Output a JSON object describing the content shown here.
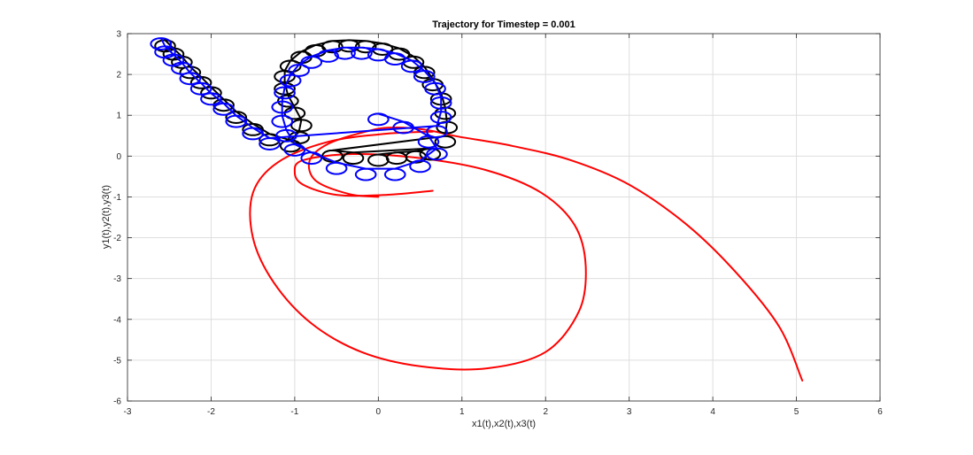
{
  "chart_data": {
    "type": "line",
    "title": "Trajectory for Timestep = 0.001",
    "xlabel": "x1(t),x2(t),x3(t)",
    "ylabel": "y1(t),y2(t),y3(t)",
    "xlim": [
      -3,
      6
    ],
    "ylim": [
      -6,
      3
    ],
    "xticks": [
      -3,
      -2,
      -1,
      0,
      1,
      2,
      3,
      4,
      5,
      6
    ],
    "yticks": [
      -6,
      -5,
      -4,
      -3,
      -2,
      -1,
      0,
      1,
      2,
      3
    ],
    "grid": true,
    "legend": "none",
    "series": [
      {
        "color": "#ff0000",
        "x": [
          0,
          -0.35,
          -0.75,
          -0.82,
          -0.6,
          -0.15,
          0.15,
          0.55,
          0.95,
          1.6,
          2.3,
          3.0,
          3.7,
          4.3,
          4.8,
          5.07
        ],
        "y": [
          -1.0,
          -0.93,
          -0.6,
          -0.1,
          0.3,
          0.6,
          0.7,
          0.65,
          0.48,
          0.25,
          -0.1,
          -0.7,
          -1.7,
          -2.9,
          -4.2,
          -5.5
        ]
      },
      {
        "color": "#ff0000",
        "x": [
          0.65,
          0.1,
          -0.6,
          -1.2,
          -1.5,
          -1.5,
          -1.25,
          -0.8,
          -0.2,
          0.5,
          1.3,
          2.0,
          2.4,
          2.48,
          2.35,
          1.95,
          1.3,
          0.5,
          -0.3,
          -0.9,
          -1.0,
          -0.9,
          -0.5,
          0.1,
          0.65
        ],
        "y": [
          0.6,
          0.55,
          0.35,
          -0.15,
          -0.9,
          -2.0,
          -3.1,
          -4.1,
          -4.8,
          -5.15,
          -5.2,
          -4.8,
          -3.8,
          -2.7,
          -1.7,
          -0.9,
          -0.35,
          -0.05,
          0.05,
          -0.1,
          -0.4,
          -0.7,
          -0.95,
          -0.95,
          -0.85
        ]
      }
    ],
    "looping_series": [
      {
        "color": "#000000",
        "loop_centers": [
          [
            0.0,
            -0.1
          ],
          [
            0.22,
            -0.05
          ],
          [
            0.45,
            -0.02
          ],
          [
            0.62,
            0.05
          ],
          [
            -0.3,
            -0.05
          ],
          [
            -0.55,
            0.0
          ],
          [
            0.8,
            0.35
          ],
          [
            0.82,
            0.7
          ],
          [
            0.8,
            1.05
          ],
          [
            0.75,
            1.4
          ],
          [
            0.65,
            1.75
          ],
          [
            0.55,
            2.05
          ],
          [
            0.42,
            2.3
          ],
          [
            0.25,
            2.5
          ],
          [
            0.05,
            2.62
          ],
          [
            -0.15,
            2.68
          ],
          [
            -0.35,
            2.7
          ],
          [
            -0.55,
            2.68
          ],
          [
            -0.75,
            2.58
          ],
          [
            -0.92,
            2.42
          ],
          [
            -1.05,
            2.2
          ],
          [
            -1.12,
            1.95
          ],
          [
            -1.12,
            1.65
          ],
          [
            -1.08,
            1.35
          ],
          [
            -1.0,
            1.05
          ],
          [
            -0.92,
            0.75
          ],
          [
            -0.95,
            0.45
          ],
          [
            -1.05,
            0.25
          ],
          [
            -1.3,
            0.4
          ],
          [
            -1.5,
            0.65
          ],
          [
            -1.7,
            0.95
          ],
          [
            -1.85,
            1.25
          ],
          [
            -2.0,
            1.55
          ],
          [
            -2.12,
            1.8
          ],
          [
            -2.25,
            2.05
          ],
          [
            -2.35,
            2.3
          ],
          [
            -2.45,
            2.5
          ],
          [
            -2.55,
            2.7
          ]
        ],
        "loop_radius": [
          0.12,
          0.14
        ]
      },
      {
        "color": "#0000ff",
        "loop_centers": [
          [
            0.0,
            0.9
          ],
          [
            0.3,
            0.7
          ],
          [
            0.6,
            0.35
          ],
          [
            0.7,
            0.05
          ],
          [
            0.5,
            -0.25
          ],
          [
            0.2,
            -0.45
          ],
          [
            -0.15,
            -0.45
          ],
          [
            -0.5,
            -0.3
          ],
          [
            -0.8,
            -0.05
          ],
          [
            -1.0,
            0.15
          ],
          [
            -1.1,
            0.5
          ],
          [
            -1.15,
            0.85
          ],
          [
            -1.15,
            1.2
          ],
          [
            -1.12,
            1.55
          ],
          [
            -1.05,
            1.85
          ],
          [
            -0.95,
            2.1
          ],
          [
            -0.8,
            2.3
          ],
          [
            -0.6,
            2.45
          ],
          [
            -0.4,
            2.52
          ],
          [
            -0.2,
            2.52
          ],
          [
            0.0,
            2.48
          ],
          [
            0.2,
            2.38
          ],
          [
            0.4,
            2.2
          ],
          [
            0.55,
            1.95
          ],
          [
            0.68,
            1.65
          ],
          [
            0.75,
            1.3
          ],
          [
            0.75,
            0.95
          ],
          [
            0.7,
            0.6
          ],
          [
            -1.3,
            0.3
          ],
          [
            -1.5,
            0.55
          ],
          [
            -1.7,
            0.85
          ],
          [
            -1.85,
            1.15
          ],
          [
            -2.0,
            1.4
          ],
          [
            -2.12,
            1.65
          ],
          [
            -2.25,
            1.9
          ],
          [
            -2.35,
            2.15
          ],
          [
            -2.45,
            2.35
          ],
          [
            -2.55,
            2.55
          ],
          [
            -2.6,
            2.75
          ]
        ],
        "loop_radius": [
          0.12,
          0.14
        ]
      }
    ]
  }
}
